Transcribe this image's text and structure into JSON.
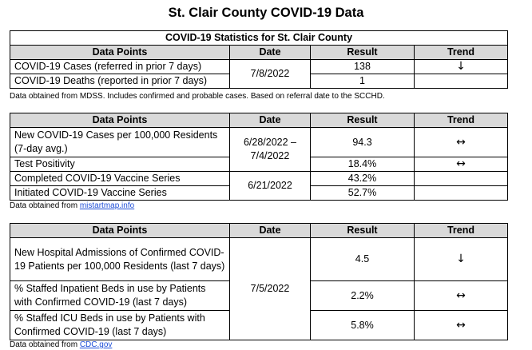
{
  "title": "St. Clair County COVID-19 Data",
  "headers": {
    "data_points": "Data Points",
    "date": "Date",
    "result": "Result",
    "trend": "Trend"
  },
  "table1": {
    "caption": "COVID-19 Statistics for St. Clair County",
    "date": "7/8/2022",
    "rows": [
      {
        "label": "COVID-19 Cases (referred in prior 7 days)",
        "result": "138",
        "trend": "↓",
        "trend_icon": "down-arrow-icon"
      },
      {
        "label": "COVID-19 Deaths (reported in prior 7 days)",
        "result": "1",
        "trend": "",
        "trend_icon": ""
      }
    ],
    "note": "Data obtained from MDSS. Includes confirmed and probable cases. Based on referral date to the SCCHD."
  },
  "table2": {
    "date_a_line1": "6/28/2022 –",
    "date_a_line2": "7/4/2022",
    "date_b": "6/21/2022",
    "rows": [
      {
        "label": "New COVID-19 Cases per 100,000 Residents (7-day avg.)",
        "result": "94.3",
        "trend": "↔",
        "trend_icon": "left-right-arrow-icon"
      },
      {
        "label": "Test Positivity",
        "result": "18.4%",
        "trend": "↔",
        "trend_icon": "left-right-arrow-icon"
      },
      {
        "label": "Completed COVID-19 Vaccine Series",
        "result": "43.2%",
        "trend": "",
        "trend_icon": ""
      },
      {
        "label": "Initiated COVID-19 Vaccine Series",
        "result": "52.7%",
        "trend": "",
        "trend_icon": ""
      }
    ],
    "note_prefix": "Data obtained from ",
    "note_link": "mistartmap.info"
  },
  "table3": {
    "date": "7/5/2022",
    "rows": [
      {
        "label": "New Hospital Admissions of Confirmed COVID-19 Patients per 100,000 Residents (last 7 days)",
        "result": "4.5",
        "trend": "↓",
        "trend_icon": "down-arrow-icon"
      },
      {
        "label": "% Staffed Inpatient Beds in use by Patients with Confirmed COVID-19 (last 7 days)",
        "result": "2.2%",
        "trend": "↔",
        "trend_icon": "left-right-arrow-icon"
      },
      {
        "label": "% Staffed ICU Beds in use by Patients with Confirmed COVID-19 (last 7 days)",
        "result": "5.8%",
        "trend": "↔",
        "trend_icon": "left-right-arrow-icon"
      }
    ],
    "note_prefix": "Data obtained from ",
    "note_link": "CDC.gov"
  }
}
